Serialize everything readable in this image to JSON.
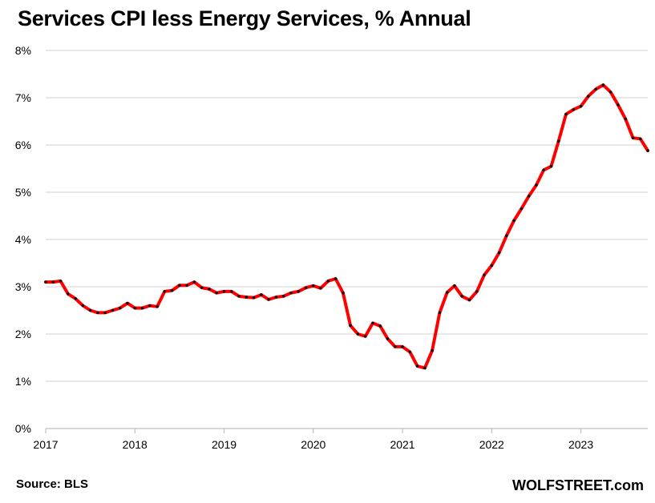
{
  "chart_data": {
    "type": "line",
    "title": "Services CPI less Energy Services, % Annual",
    "xlabel": "",
    "ylabel": "",
    "ylim": [
      0,
      8
    ],
    "xlim": [
      2017.0,
      2023.75
    ],
    "x_ticks": [
      "2017",
      "2018",
      "2019",
      "2020",
      "2021",
      "2022",
      "2023"
    ],
    "y_ticks": [
      "0%",
      "1%",
      "2%",
      "3%",
      "4%",
      "5%",
      "6%",
      "7%",
      "8%"
    ],
    "grid": true,
    "colors": {
      "line": "#ff0000",
      "marker": "#000000",
      "grid": "#d9d9d9",
      "axis": "#bfbfbf"
    },
    "series": [
      {
        "name": "",
        "start": "2017-01",
        "frequency": "monthly",
        "values": [
          3.1,
          3.1,
          3.12,
          2.85,
          2.75,
          2.6,
          2.5,
          2.45,
          2.45,
          2.5,
          2.55,
          2.65,
          2.55,
          2.55,
          2.6,
          2.58,
          2.9,
          2.92,
          3.03,
          3.03,
          3.1,
          2.98,
          2.95,
          2.87,
          2.9,
          2.9,
          2.8,
          2.78,
          2.77,
          2.83,
          2.73,
          2.78,
          2.8,
          2.87,
          2.9,
          2.98,
          3.02,
          2.97,
          3.12,
          3.17,
          2.87,
          2.18,
          2.0,
          1.95,
          2.23,
          2.17,
          1.9,
          1.73,
          1.73,
          1.62,
          1.32,
          1.28,
          1.65,
          2.45,
          2.88,
          3.02,
          2.8,
          2.72,
          2.9,
          3.25,
          3.45,
          3.72,
          4.08,
          4.4,
          4.65,
          4.92,
          5.15,
          5.47,
          5.55,
          6.08,
          6.65,
          6.75,
          6.82,
          7.03,
          7.18,
          7.27,
          7.12,
          6.85,
          6.55,
          6.15,
          6.13,
          5.88
        ]
      }
    ]
  },
  "footer": {
    "source": "Source: BLS",
    "brand": "WOLFSTREET.com"
  }
}
